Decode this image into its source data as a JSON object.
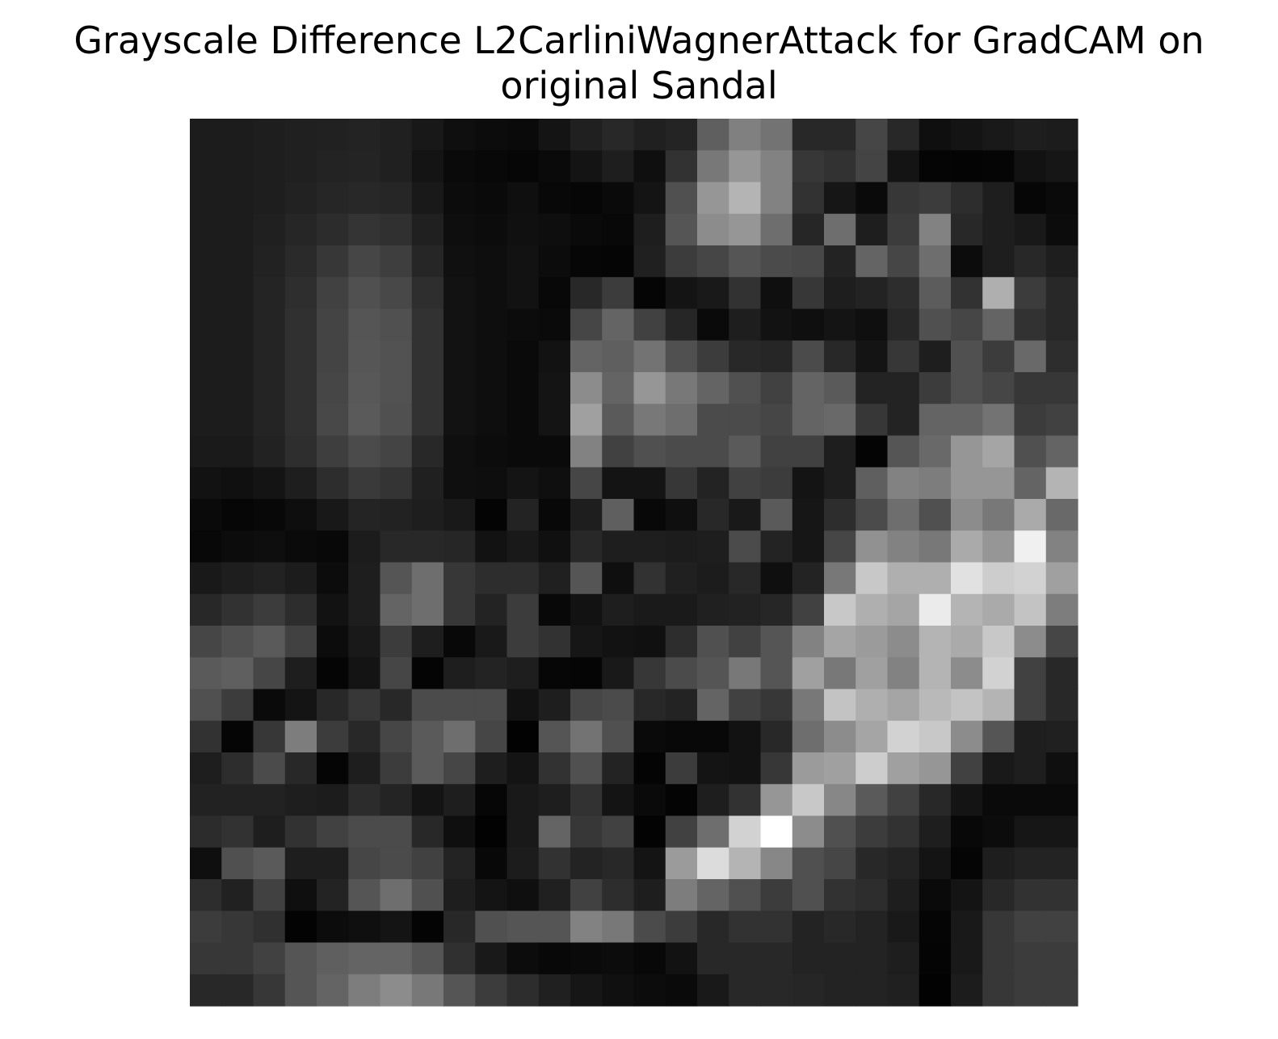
{
  "chart_data": {
    "type": "heatmap",
    "title": "Grayscale Difference L2CarliniWagnerAttack for GradCAM on\noriginal Sandal",
    "xlabel": "",
    "ylabel": "",
    "axes": "off",
    "colormap": "gray",
    "rows": 28,
    "cols": 28,
    "value_range": [
      0,
      255
    ],
    "values": [
      [
        28,
        28,
        30,
        32,
        33,
        35,
        32,
        24,
        15,
        12,
        10,
        20,
        32,
        40,
        32,
        36,
        95,
        128,
        115,
        40,
        40,
        70,
        40,
        15,
        20,
        25,
        30,
        28
      ],
      [
        28,
        28,
        30,
        32,
        35,
        36,
        32,
        20,
        10,
        8,
        6,
        10,
        20,
        30,
        15,
        50,
        120,
        150,
        130,
        55,
        50,
        68,
        20,
        5,
        4,
        5,
        18,
        22
      ],
      [
        28,
        28,
        30,
        34,
        38,
        40,
        38,
        25,
        12,
        10,
        15,
        8,
        6,
        10,
        20,
        80,
        150,
        180,
        130,
        50,
        22,
        10,
        55,
        60,
        45,
        30,
        6,
        10
      ],
      [
        28,
        28,
        32,
        38,
        44,
        52,
        48,
        32,
        14,
        12,
        16,
        14,
        10,
        8,
        30,
        85,
        140,
        150,
        110,
        38,
        110,
        30,
        60,
        130,
        40,
        30,
        25,
        12
      ],
      [
        28,
        28,
        34,
        42,
        55,
        70,
        62,
        38,
        16,
        14,
        18,
        12,
        6,
        5,
        32,
        60,
        70,
        85,
        75,
        72,
        35,
        100,
        70,
        110,
        12,
        30,
        40,
        30
      ],
      [
        28,
        28,
        36,
        46,
        65,
        80,
        72,
        46,
        18,
        14,
        18,
        8,
        40,
        60,
        5,
        20,
        25,
        50,
        15,
        55,
        30,
        35,
        45,
        92,
        50,
        175,
        60,
        40
      ],
      [
        28,
        28,
        36,
        48,
        68,
        85,
        80,
        50,
        18,
        14,
        12,
        10,
        70,
        100,
        65,
        38,
        10,
        30,
        18,
        15,
        20,
        15,
        40,
        80,
        70,
        100,
        50,
        40
      ],
      [
        28,
        28,
        36,
        48,
        68,
        86,
        82,
        50,
        18,
        14,
        10,
        18,
        100,
        95,
        115,
        80,
        60,
        40,
        38,
        75,
        40,
        20,
        55,
        30,
        80,
        60,
        105,
        45
      ],
      [
        28,
        28,
        36,
        48,
        70,
        88,
        82,
        50,
        18,
        14,
        10,
        20,
        140,
        100,
        150,
        120,
        100,
        80,
        65,
        100,
        90,
        35,
        35,
        60,
        80,
        70,
        55,
        55
      ],
      [
        28,
        28,
        36,
        48,
        72,
        90,
        80,
        50,
        18,
        14,
        10,
        20,
        160,
        90,
        120,
        110,
        75,
        75,
        70,
        100,
        105,
        55,
        35,
        100,
        100,
        115,
        60,
        65
      ],
      [
        26,
        26,
        34,
        46,
        62,
        75,
        68,
        40,
        15,
        12,
        10,
        10,
        130,
        65,
        80,
        75,
        75,
        90,
        65,
        65,
        30,
        4,
        85,
        105,
        150,
        165,
        80,
        100
      ],
      [
        18,
        16,
        20,
        30,
        45,
        58,
        52,
        32,
        15,
        14,
        20,
        15,
        70,
        20,
        20,
        55,
        35,
        65,
        60,
        20,
        30,
        95,
        130,
        125,
        150,
        150,
        100,
        180
      ],
      [
        10,
        6,
        8,
        14,
        24,
        36,
        34,
        30,
        25,
        4,
        35,
        8,
        30,
        95,
        8,
        15,
        40,
        25,
        90,
        22,
        45,
        75,
        110,
        80,
        140,
        120,
        170,
        105
      ],
      [
        8,
        12,
        14,
        10,
        8,
        28,
        40,
        40,
        38,
        18,
        25,
        16,
        40,
        30,
        30,
        28,
        30,
        75,
        35,
        22,
        70,
        145,
        130,
        120,
        170,
        150,
        240,
        130
      ],
      [
        25,
        30,
        34,
        28,
        12,
        30,
        85,
        110,
        55,
        45,
        45,
        32,
        85,
        15,
        50,
        32,
        28,
        40,
        15,
        35,
        120,
        200,
        175,
        175,
        225,
        205,
        210,
        160
      ],
      [
        40,
        50,
        60,
        45,
        18,
        30,
        100,
        110,
        55,
        35,
        60,
        8,
        18,
        30,
        26,
        26,
        32,
        34,
        38,
        65,
        200,
        175,
        165,
        235,
        180,
        170,
        195,
        125
      ],
      [
        70,
        80,
        90,
        65,
        12,
        25,
        60,
        30,
        8,
        25,
        60,
        50,
        22,
        18,
        16,
        45,
        80,
        65,
        85,
        130,
        165,
        155,
        140,
        180,
        170,
        200,
        140,
        70
      ],
      [
        90,
        95,
        70,
        30,
        5,
        20,
        70,
        4,
        30,
        35,
        30,
        6,
        5,
        25,
        55,
        75,
        85,
        120,
        85,
        160,
        120,
        160,
        130,
        180,
        140,
        210,
        65,
        40
      ],
      [
        80,
        60,
        10,
        20,
        40,
        55,
        40,
        75,
        75,
        75,
        18,
        30,
        70,
        75,
        40,
        35,
        100,
        65,
        55,
        120,
        195,
        175,
        165,
        185,
        195,
        180,
        65,
        40
      ],
      [
        50,
        5,
        55,
        125,
        60,
        40,
        70,
        90,
        110,
        70,
        2,
        85,
        115,
        80,
        10,
        8,
        8,
        18,
        40,
        110,
        140,
        165,
        210,
        200,
        140,
        85,
        30,
        32
      ],
      [
        30,
        45,
        75,
        40,
        5,
        30,
        60,
        90,
        70,
        30,
        20,
        50,
        80,
        35,
        4,
        60,
        20,
        18,
        55,
        155,
        160,
        205,
        160,
        150,
        65,
        25,
        30,
        15
      ],
      [
        34,
        34,
        34,
        30,
        28,
        44,
        36,
        20,
        30,
        6,
        25,
        30,
        50,
        20,
        10,
        4,
        30,
        50,
        150,
        200,
        135,
        90,
        65,
        40,
        20,
        10,
        10,
        10
      ],
      [
        44,
        50,
        30,
        50,
        65,
        75,
        75,
        40,
        15,
        2,
        25,
        100,
        55,
        65,
        3,
        65,
        110,
        210,
        255,
        140,
        80,
        60,
        50,
        30,
        8,
        12,
        22,
        22
      ],
      [
        15,
        80,
        90,
        30,
        30,
        70,
        75,
        65,
        35,
        8,
        28,
        50,
        35,
        40,
        20,
        155,
        220,
        180,
        135,
        80,
        70,
        40,
        35,
        20,
        5,
        30,
        35,
        35
      ],
      [
        45,
        33,
        65,
        15,
        35,
        85,
        110,
        80,
        30,
        20,
        15,
        32,
        65,
        45,
        30,
        125,
        100,
        80,
        60,
        80,
        50,
        45,
        30,
        10,
        20,
        40,
        50,
        50
      ],
      [
        60,
        55,
        48,
        3,
        12,
        15,
        20,
        4,
        40,
        80,
        85,
        85,
        130,
        120,
        75,
        60,
        40,
        50,
        50,
        35,
        40,
        35,
        25,
        5,
        25,
        55,
        65,
        65
      ],
      [
        55,
        55,
        65,
        85,
        95,
        100,
        100,
        85,
        48,
        25,
        12,
        8,
        10,
        12,
        8,
        18,
        40,
        40,
        40,
        35,
        35,
        35,
        30,
        4,
        25,
        55,
        60,
        60
      ],
      [
        40,
        40,
        55,
        85,
        100,
        125,
        140,
        120,
        85,
        60,
        45,
        32,
        22,
        16,
        12,
        10,
        25,
        40,
        40,
        38,
        35,
        35,
        32,
        2,
        28,
        55,
        60,
        60
      ]
    ]
  }
}
